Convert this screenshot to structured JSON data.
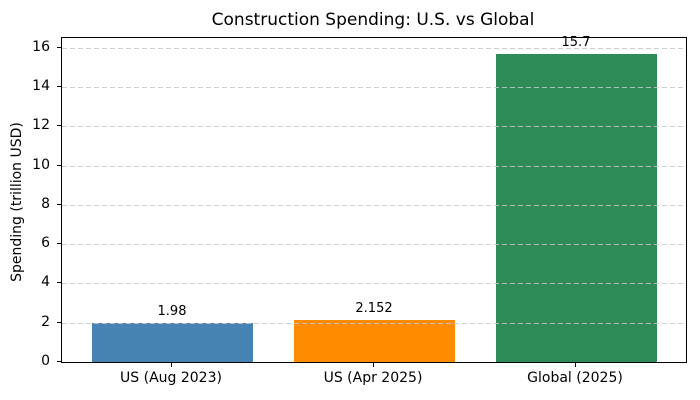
{
  "chart_data": {
    "type": "bar",
    "title": "Construction Spending: U.S. vs Global",
    "xlabel": "",
    "ylabel": "Spending (trillion USD)",
    "categories": [
      "US (Aug 2023)",
      "US (Apr 2025)",
      "Global (2025)"
    ],
    "values": [
      1.98,
      2.152,
      15.7
    ],
    "value_labels": [
      "1.98",
      "2.152",
      "15.7"
    ],
    "bar_colors": [
      "#4682b4",
      "#ff8c00",
      "#2e8b57"
    ],
    "ylim": [
      0,
      16.5
    ],
    "yticks": [
      0,
      2,
      4,
      6,
      8,
      10,
      12,
      14,
      16
    ],
    "grid": "horizontal dashed gridlines, light gray, drawn over bars",
    "legend": "none",
    "colors": {
      "background": "#ffffff",
      "axis": "#000000",
      "grid": "#c9c9c9",
      "text": "#000000"
    }
  }
}
